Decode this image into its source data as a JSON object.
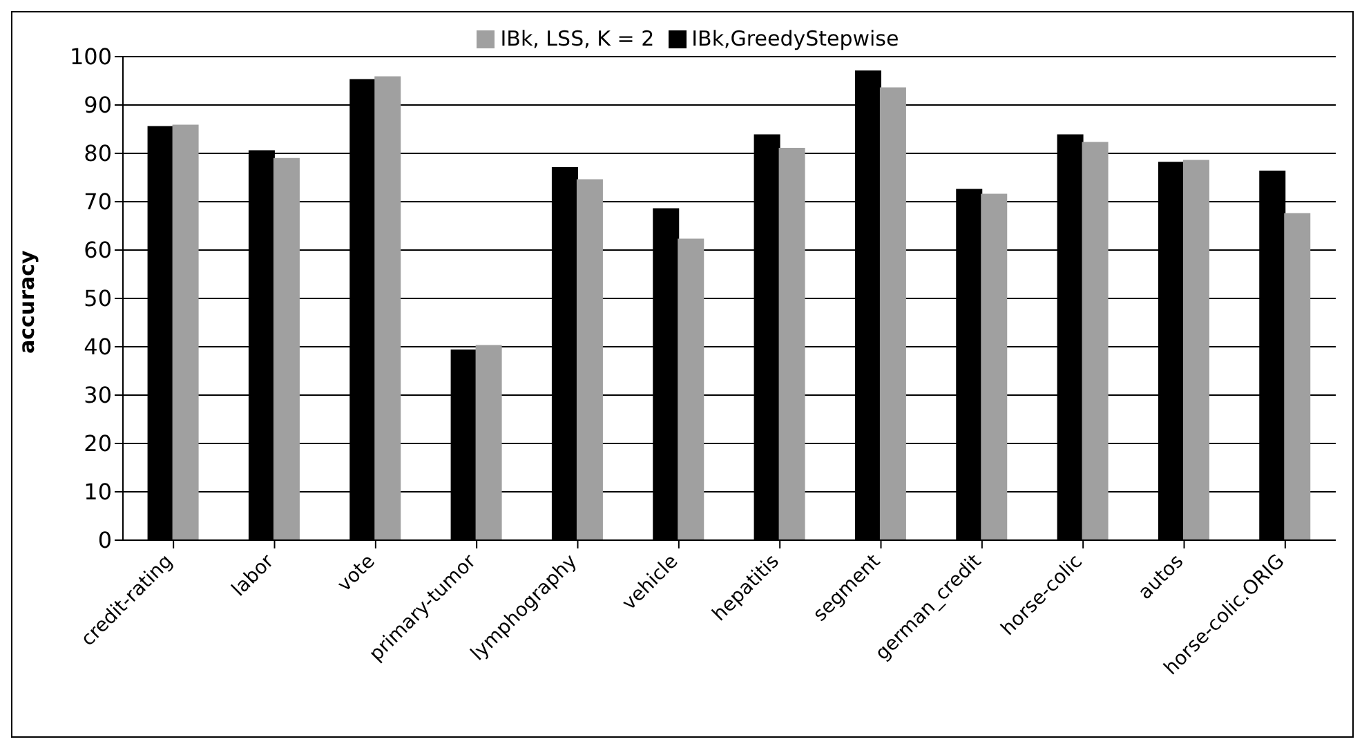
{
  "chart_data": {
    "type": "bar",
    "ylabel": "accuracy",
    "categories": [
      "credit-rating",
      "labor",
      "vote",
      "primary-tumor",
      "lymphography",
      "vehicle",
      "hepatitis",
      "segment",
      "german_credit",
      "horse-colic",
      "autos",
      "horse-colic.ORIG"
    ],
    "series": [
      {
        "name": "IBk,GreedyStepwise",
        "color": "#000000",
        "values": [
          85.5,
          80.5,
          95.2,
          39.3,
          77,
          68.5,
          83.8,
          97,
          72.5,
          83.8,
          78.1,
          76.3
        ]
      },
      {
        "name": "IBk, LSS, K = 2",
        "color": "#a0a0a0",
        "values": [
          85.8,
          78.9,
          95.8,
          40.2,
          74.5,
          62.2,
          81,
          93.5,
          71.5,
          82.2,
          78.5,
          67.5
        ]
      }
    ],
    "ylim": [
      0,
      100
    ],
    "yticks": [
      0,
      10,
      20,
      30,
      40,
      50,
      60,
      70,
      80,
      90,
      100
    ],
    "grid": "y",
    "legend": "top"
  }
}
